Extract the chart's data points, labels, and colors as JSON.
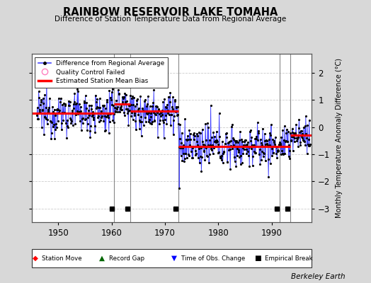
{
  "title": "RAINBOW RESERVOIR LAKE TOMAHA",
  "subtitle": "Difference of Station Temperature Data from Regional Average",
  "ylabel": "Monthly Temperature Anomaly Difference (°C)",
  "bg_color": "#d8d8d8",
  "plot_bg_color": "#ffffff",
  "ylim": [
    -3.5,
    2.7
  ],
  "yticks": [
    -3,
    -2,
    -1,
    0,
    1,
    2
  ],
  "xmin": 1945.0,
  "xmax": 1997.5,
  "xticks": [
    1950,
    1960,
    1970,
    1980,
    1990
  ],
  "vertical_lines": [
    1960.5,
    1963.5,
    1972.5,
    1991.5,
    1993.5
  ],
  "bias_segments": [
    {
      "xstart": 1945.0,
      "xend": 1960.5,
      "bias": 0.52
    },
    {
      "xstart": 1960.5,
      "xend": 1963.5,
      "bias": 0.85
    },
    {
      "xstart": 1963.5,
      "xend": 1972.5,
      "bias": 0.6
    },
    {
      "xstart": 1972.5,
      "xend": 1991.5,
      "bias": -0.7
    },
    {
      "xstart": 1991.5,
      "xend": 1993.5,
      "bias": -0.7
    },
    {
      "xstart": 1993.5,
      "xend": 1997.5,
      "bias": -0.3
    }
  ],
  "empirical_break_years": [
    1960,
    1963,
    1972,
    1991,
    1993
  ],
  "attribution": "Berkeley Earth",
  "legend_top": [
    "Difference from Regional Average",
    "Quality Control Failed",
    "Estimated Station Mean Bias"
  ]
}
